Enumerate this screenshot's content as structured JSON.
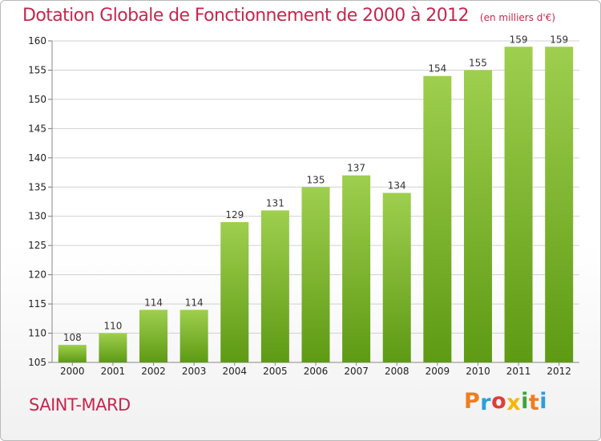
{
  "title": {
    "main": "Dotation Globale de Fonctionnement de 2000 à 2012",
    "sub": "(en milliers d'€)"
  },
  "commune": "SAINT-MARD",
  "brand": {
    "letters": [
      "P",
      "r",
      "o",
      "x",
      "i",
      "t",
      "i"
    ],
    "colors": [
      "#f07d1f",
      "#2aa0d8",
      "#e23b3b",
      "#f5b800",
      "#3aa63a",
      "#f07d1f",
      "#2aa0d8"
    ]
  },
  "colors": {
    "bar_top": "#9ecf4e",
    "bar_bottom": "#5e9a14",
    "grid": "#d0d0d0",
    "title": "#c4284e"
  },
  "chart_data": {
    "type": "bar",
    "categories": [
      "2000",
      "2001",
      "2002",
      "2003",
      "2004",
      "2005",
      "2006",
      "2007",
      "2008",
      "2009",
      "2010",
      "2011",
      "2012"
    ],
    "values": [
      108,
      110,
      114,
      114,
      129,
      131,
      135,
      137,
      134,
      154,
      155,
      159,
      159
    ],
    "ylim": [
      105,
      160
    ],
    "yticks": [
      105,
      110,
      115,
      120,
      125,
      130,
      135,
      140,
      145,
      150,
      155,
      160
    ],
    "grid": true
  }
}
